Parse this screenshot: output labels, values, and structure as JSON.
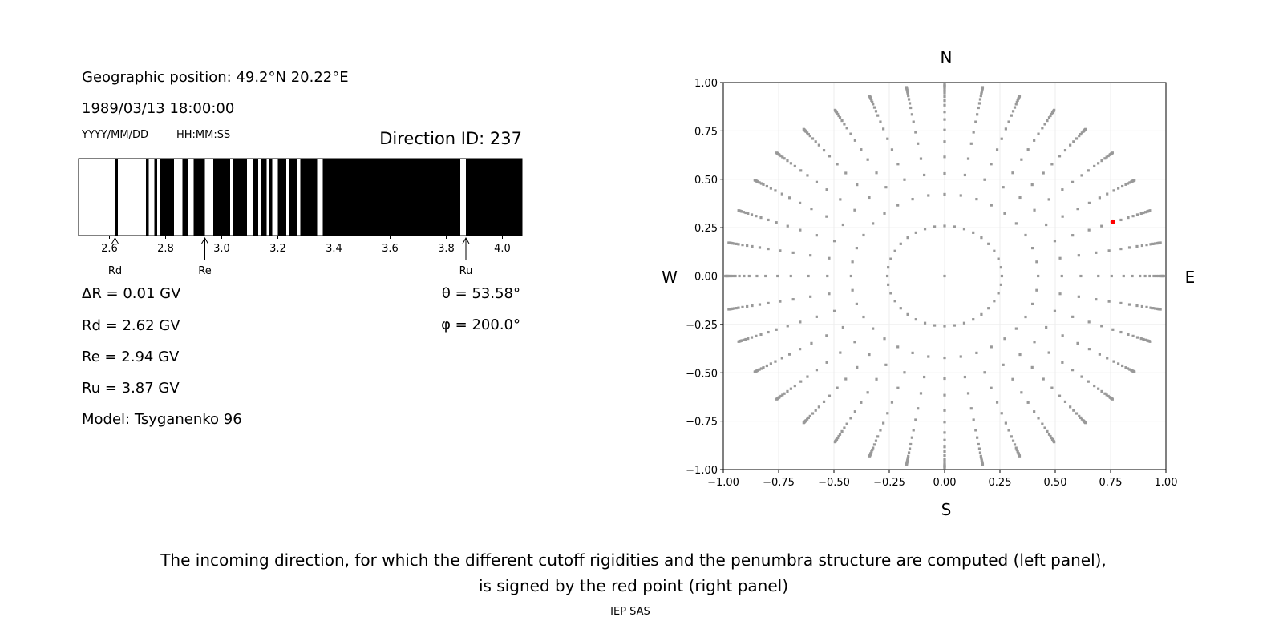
{
  "left_panel": {
    "geo_position": "Geographic position: 49.2°N 20.22°E",
    "datetime": "1989/03/13 18:00:00",
    "date_format": "YYYY/MM/DD",
    "time_format": "HH:MM:SS",
    "direction_id": "Direction ID: 237",
    "delta_r": "ΔR = 0.01 GV",
    "rd": "Rd = 2.62 GV",
    "re": "Re = 2.94 GV",
    "ru": "Ru = 3.87 GV",
    "model": "Model: Tsyganenko 96",
    "theta": "θ = 53.58°",
    "phi": "φ = 200.0°"
  },
  "footer": {
    "caption_line1": "The incoming direction, for which the different cutoff rigidities and the penumbra structure are computed (left panel),",
    "caption_line2": "is signed by the red point (right panel)",
    "credit": "IEP SAS"
  },
  "chart_data": [
    {
      "type": "penumbra-bar",
      "xlim": [
        2.49,
        4.07
      ],
      "xticks": [
        2.6,
        2.8,
        3.0,
        3.2,
        3.4,
        3.6,
        3.8,
        4.0
      ],
      "xtick_labels": [
        "2.6",
        "2.8",
        "3.0",
        "3.2",
        "3.4",
        "3.6",
        "3.8",
        "4.0"
      ],
      "forbidden_intervals_gv": [
        [
          2.62,
          2.63
        ],
        [
          2.73,
          2.74
        ],
        [
          2.76,
          2.77
        ],
        [
          2.78,
          2.8
        ],
        [
          2.8,
          2.83
        ],
        [
          2.86,
          2.88
        ],
        [
          2.9,
          2.94
        ],
        [
          2.97,
          3.0
        ],
        [
          3.0,
          3.03
        ],
        [
          3.04,
          3.09
        ],
        [
          3.11,
          3.13
        ],
        [
          3.14,
          3.16
        ],
        [
          3.17,
          3.18
        ],
        [
          3.2,
          3.23
        ],
        [
          3.24,
          3.26
        ],
        [
          3.26,
          3.27
        ],
        [
          3.28,
          3.34
        ],
        [
          3.36,
          3.85
        ],
        [
          3.87,
          4.07
        ]
      ],
      "colors": {
        "allowed": "#ffffff",
        "forbidden": "#000000"
      },
      "markers": [
        {
          "label": "Rd",
          "value": 2.62
        },
        {
          "label": "Re",
          "value": 2.94
        },
        {
          "label": "Ru",
          "value": 3.87
        }
      ]
    },
    {
      "type": "scatter",
      "xlim": [
        -1,
        1
      ],
      "ylim": [
        -1,
        1
      ],
      "xticks": [
        "−1.00",
        "−0.75",
        "−0.50",
        "−0.25",
        "0.00",
        "0.25",
        "0.50",
        "0.75",
        "1.00"
      ],
      "yticks": [
        "−1.00",
        "−0.75",
        "−0.50",
        "−0.25",
        "0.00",
        "0.25",
        "0.50",
        "0.75",
        "1.00"
      ],
      "grid": true,
      "directions": {
        "north": "N",
        "south": "S",
        "west": "W",
        "east": "E"
      },
      "grid_points": {
        "azimuth_step_deg": 10,
        "zenith_angles_deg": [
          15,
          25,
          32,
          38,
          44,
          49,
          54,
          58,
          62,
          65,
          68,
          71,
          73,
          75,
          77,
          78,
          79,
          80,
          81,
          82
        ],
        "color": "#999999"
      },
      "selected_point": {
        "x": 0.76,
        "y": 0.28,
        "color": "#ff0000"
      }
    }
  ]
}
